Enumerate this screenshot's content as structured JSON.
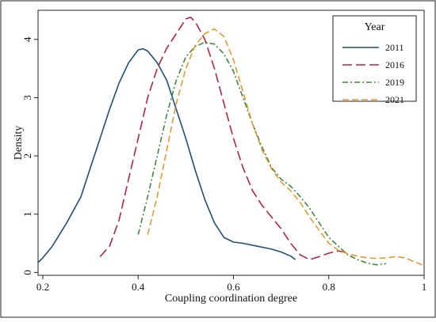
{
  "chart_data": {
    "type": "line",
    "xlabel": "Coupling coordination degree",
    "ylabel": "Density",
    "xlim": [
      0.19,
      1.0
    ],
    "ylim": [
      -0.05,
      4.5
    ],
    "xticks": [
      0.2,
      0.4,
      0.6,
      0.8,
      1
    ],
    "xtick_labels": [
      "0.2",
      "0.4",
      "0.6",
      "0.8",
      "1"
    ],
    "yticks": [
      0,
      1,
      2,
      3,
      4
    ],
    "ytick_labels": [
      "0",
      "1",
      "2",
      "3",
      "4"
    ],
    "grid": false,
    "legend": {
      "title": "Year",
      "position": "top-right"
    },
    "series": [
      {
        "name": "2011",
        "color": "#1f4e79",
        "dash": "solid",
        "points": [
          [
            0.19,
            0.17
          ],
          [
            0.2,
            0.25
          ],
          [
            0.22,
            0.45
          ],
          [
            0.25,
            0.85
          ],
          [
            0.28,
            1.3
          ],
          [
            0.3,
            1.8
          ],
          [
            0.32,
            2.3
          ],
          [
            0.34,
            2.8
          ],
          [
            0.36,
            3.25
          ],
          [
            0.38,
            3.6
          ],
          [
            0.4,
            3.82
          ],
          [
            0.41,
            3.84
          ],
          [
            0.42,
            3.8
          ],
          [
            0.44,
            3.6
          ],
          [
            0.46,
            3.3
          ],
          [
            0.48,
            2.8
          ],
          [
            0.5,
            2.3
          ],
          [
            0.52,
            1.75
          ],
          [
            0.54,
            1.25
          ],
          [
            0.56,
            0.85
          ],
          [
            0.58,
            0.6
          ],
          [
            0.6,
            0.52
          ],
          [
            0.62,
            0.5
          ],
          [
            0.65,
            0.45
          ],
          [
            0.68,
            0.4
          ],
          [
            0.7,
            0.35
          ],
          [
            0.72,
            0.28
          ],
          [
            0.73,
            0.22
          ]
        ]
      },
      {
        "name": "2016",
        "color": "#b5243c",
        "dash": "12,5",
        "points": [
          [
            0.32,
            0.27
          ],
          [
            0.34,
            0.45
          ],
          [
            0.36,
            0.9
          ],
          [
            0.38,
            1.6
          ],
          [
            0.4,
            2.3
          ],
          [
            0.42,
            3.0
          ],
          [
            0.44,
            3.5
          ],
          [
            0.46,
            3.85
          ],
          [
            0.48,
            4.1
          ],
          [
            0.5,
            4.35
          ],
          [
            0.51,
            4.38
          ],
          [
            0.52,
            4.3
          ],
          [
            0.54,
            4.0
          ],
          [
            0.56,
            3.5
          ],
          [
            0.58,
            2.9
          ],
          [
            0.6,
            2.3
          ],
          [
            0.62,
            1.8
          ],
          [
            0.64,
            1.4
          ],
          [
            0.66,
            1.15
          ],
          [
            0.68,
            0.95
          ],
          [
            0.7,
            0.75
          ],
          [
            0.72,
            0.5
          ],
          [
            0.74,
            0.3
          ],
          [
            0.76,
            0.22
          ],
          [
            0.78,
            0.27
          ],
          [
            0.8,
            0.33
          ],
          [
            0.82,
            0.37
          ],
          [
            0.84,
            0.33
          ]
        ]
      },
      {
        "name": "2019",
        "color": "#3c8a3c",
        "dash": "7,3,2,3",
        "points": [
          [
            0.4,
            0.65
          ],
          [
            0.42,
            1.3
          ],
          [
            0.44,
            2.0
          ],
          [
            0.46,
            2.7
          ],
          [
            0.48,
            3.3
          ],
          [
            0.5,
            3.7
          ],
          [
            0.52,
            3.88
          ],
          [
            0.54,
            3.95
          ],
          [
            0.56,
            3.92
          ],
          [
            0.58,
            3.75
          ],
          [
            0.6,
            3.45
          ],
          [
            0.62,
            3.0
          ],
          [
            0.64,
            2.55
          ],
          [
            0.66,
            2.15
          ],
          [
            0.68,
            1.8
          ],
          [
            0.7,
            1.6
          ],
          [
            0.72,
            1.48
          ],
          [
            0.74,
            1.3
          ],
          [
            0.76,
            1.1
          ],
          [
            0.78,
            0.85
          ],
          [
            0.8,
            0.6
          ],
          [
            0.82,
            0.45
          ],
          [
            0.84,
            0.3
          ],
          [
            0.86,
            0.22
          ],
          [
            0.88,
            0.16
          ],
          [
            0.9,
            0.13
          ],
          [
            0.92,
            0.15
          ]
        ]
      },
      {
        "name": "2021",
        "color": "#e69a2e",
        "dash": "8,4",
        "points": [
          [
            0.42,
            0.65
          ],
          [
            0.44,
            1.3
          ],
          [
            0.46,
            2.1
          ],
          [
            0.48,
            2.9
          ],
          [
            0.5,
            3.5
          ],
          [
            0.52,
            3.9
          ],
          [
            0.54,
            4.1
          ],
          [
            0.56,
            4.18
          ],
          [
            0.58,
            4.05
          ],
          [
            0.6,
            3.65
          ],
          [
            0.62,
            3.1
          ],
          [
            0.64,
            2.55
          ],
          [
            0.66,
            2.1
          ],
          [
            0.68,
            1.78
          ],
          [
            0.7,
            1.55
          ],
          [
            0.72,
            1.4
          ],
          [
            0.74,
            1.2
          ],
          [
            0.76,
            0.95
          ],
          [
            0.78,
            0.72
          ],
          [
            0.8,
            0.5
          ],
          [
            0.82,
            0.38
          ],
          [
            0.84,
            0.32
          ],
          [
            0.86,
            0.28
          ],
          [
            0.88,
            0.25
          ],
          [
            0.9,
            0.24
          ],
          [
            0.92,
            0.25
          ],
          [
            0.94,
            0.27
          ],
          [
            0.96,
            0.25
          ],
          [
            0.98,
            0.18
          ],
          [
            1.0,
            0.12
          ]
        ]
      }
    ]
  }
}
